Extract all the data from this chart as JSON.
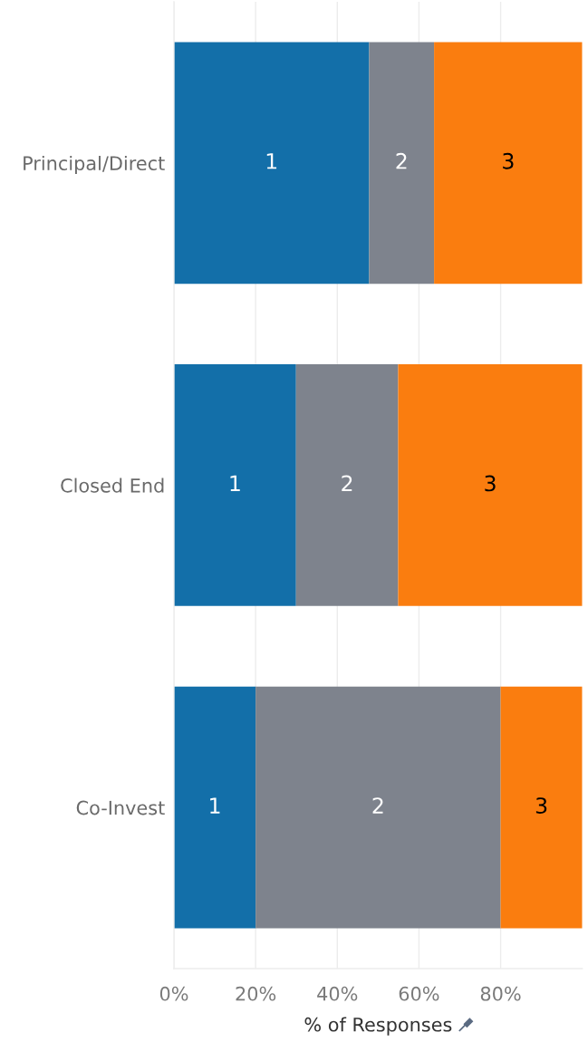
{
  "chart_data": {
    "type": "bar",
    "orientation": "horizontal",
    "stacked": true,
    "xlabel": "% of Responses",
    "categories": [
      "Principal/Direct",
      "Closed End",
      "Co-Invest"
    ],
    "series": [
      {
        "name": "1",
        "color": "#136fa9",
        "values": [
          47.8,
          29.9,
          20
        ]
      },
      {
        "name": "2",
        "color": "#7e838d",
        "values": [
          15.9,
          25.0,
          60
        ]
      },
      {
        "name": "3",
        "color": "#fa7d0f",
        "values": [
          36.3,
          45.1,
          20
        ]
      }
    ],
    "xlim": [
      0,
      100
    ],
    "xticks": [
      {
        "value": 0,
        "label": "0%"
      },
      {
        "value": 20,
        "label": "20%"
      },
      {
        "value": 40,
        "label": "40%"
      },
      {
        "value": 60,
        "label": "60%"
      },
      {
        "value": 80,
        "label": "80%"
      }
    ],
    "grid": "x"
  }
}
